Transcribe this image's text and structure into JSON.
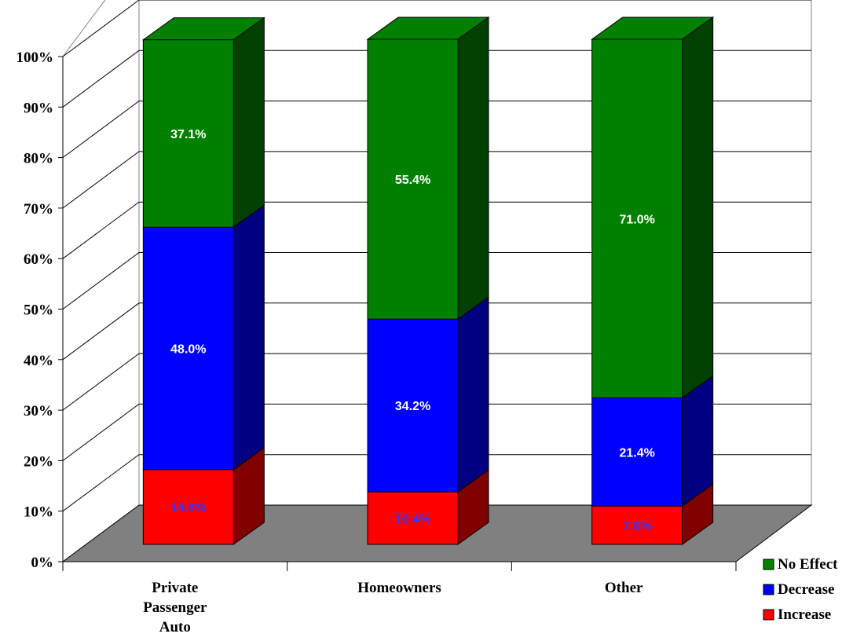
{
  "chart_data": {
    "type": "bar",
    "stacked": true,
    "percent_stacked": true,
    "three_d": true,
    "categories": [
      "Private Passenger Auto",
      "Homeowners",
      "Other"
    ],
    "category_label_lines": [
      [
        "Private",
        "Passenger",
        "Auto"
      ],
      [
        "Homeowners"
      ],
      [
        "Other"
      ]
    ],
    "series": [
      {
        "name": "Increase",
        "values": [
          14.8,
          10.4,
          7.6
        ],
        "labels": [
          "14.8%",
          "10.4%",
          "7.6%"
        ],
        "color": "#ff0000",
        "side_color": "#800000",
        "label_color": "#3333ff"
      },
      {
        "name": "Decrease",
        "values": [
          48.0,
          34.2,
          21.4
        ],
        "labels": [
          "48.0%",
          "34.2%",
          "21.4%"
        ],
        "color": "#0000ff",
        "side_color": "#000080",
        "label_color": "#ffffff"
      },
      {
        "name": "No Effect",
        "values": [
          37.1,
          55.4,
          71.0
        ],
        "labels": [
          "37.1%",
          "55.4%",
          "71.0%"
        ],
        "color": "#008000",
        "side_color": "#004000",
        "label_color": "#ffffff"
      }
    ],
    "y_ticks": [
      "0%",
      "10%",
      "20%",
      "30%",
      "40%",
      "50%",
      "60%",
      "70%",
      "80%",
      "90%",
      "100%"
    ],
    "ylim": [
      0,
      100
    ],
    "grid": true,
    "floor_color": "#808080",
    "legend_position": "bottom-right",
    "legend_order": [
      "No Effect",
      "Decrease",
      "Increase"
    ],
    "title": "",
    "xlabel": "",
    "ylabel": ""
  }
}
